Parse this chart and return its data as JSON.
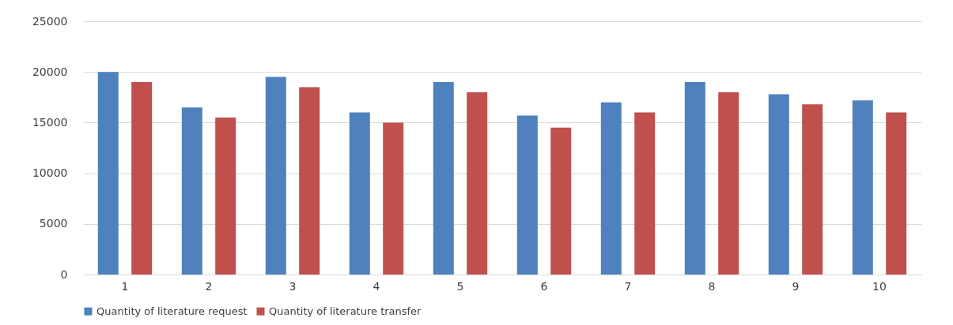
{
  "chart_data": {
    "type": "bar",
    "categories": [
      "1",
      "2",
      "3",
      "4",
      "5",
      "6",
      "7",
      "8",
      "9",
      "10"
    ],
    "series": [
      {
        "name": "Quantity of literature request",
        "color": "#4f81bd",
        "values": [
          20000,
          16500,
          19500,
          16000,
          19000,
          15700,
          17000,
          19000,
          17800,
          17200
        ]
      },
      {
        "name": "Quantity of literature transfer",
        "color": "#c0504d",
        "values": [
          19000,
          15500,
          18500,
          15000,
          18000,
          14500,
          16000,
          18000,
          16800,
          16000
        ]
      }
    ],
    "ylim": [
      0,
      25000
    ],
    "yticks": [
      0,
      5000,
      10000,
      15000,
      20000,
      25000
    ],
    "grid": "y",
    "legend": "bottom"
  }
}
